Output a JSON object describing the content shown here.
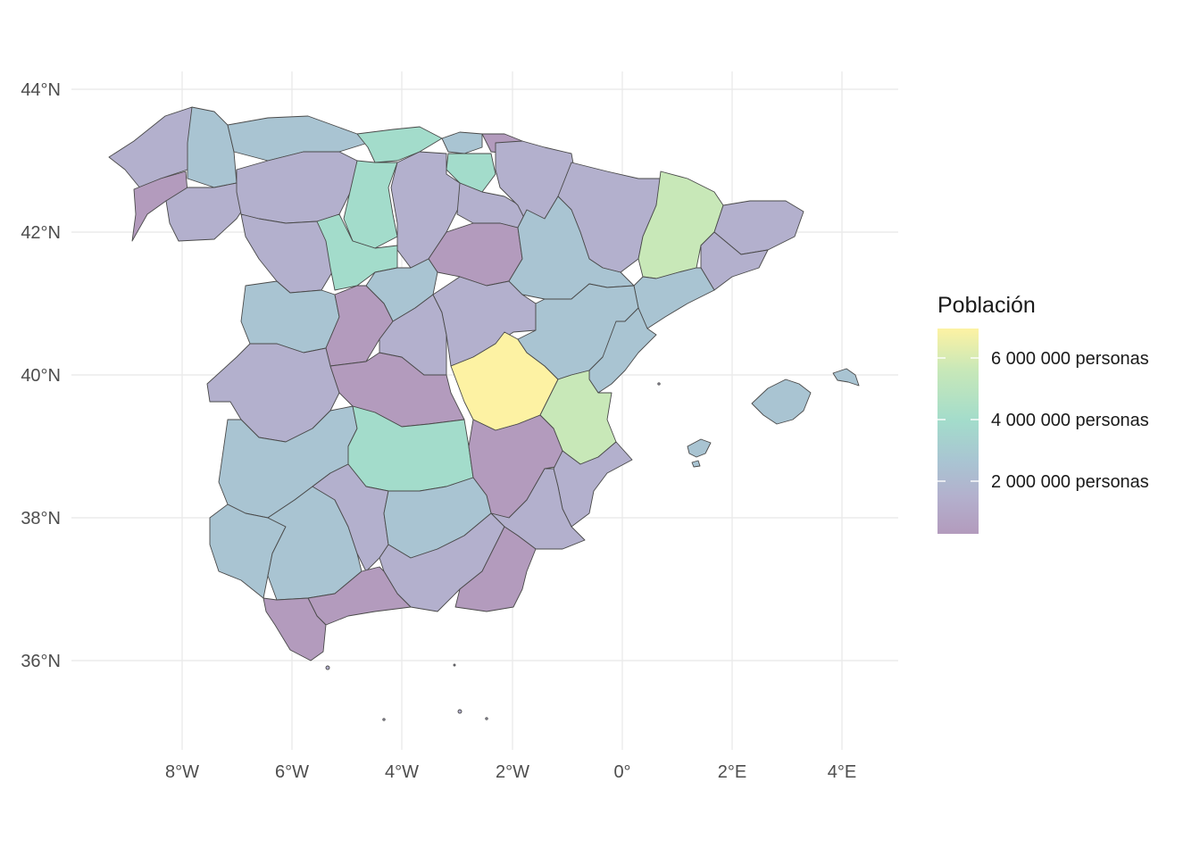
{
  "map": {
    "lat_ticks": [
      "44°N",
      "42°N",
      "40°N",
      "38°N",
      "36°N"
    ],
    "lon_ticks": [
      "8°W",
      "6°W",
      "4°W",
      "2°W",
      "0°",
      "2°E",
      "4°E"
    ]
  },
  "legend": {
    "title": "Población",
    "labels": [
      "6 000 000 personas",
      "4 000 000 personas",
      "2 000 000 personas"
    ],
    "values": [
      6000000,
      4000000,
      2000000
    ],
    "gradient_colors": [
      "#fdf2a3",
      "#c8e8b8",
      "#a3dccb",
      "#a9c4d2",
      "#b3b0cd",
      "#b39bbd"
    ]
  },
  "palette": {
    "low": "#b39bbd",
    "mid_low": "#b3b0cd",
    "mid": "#a9c4d2",
    "mid_high": "#a3dccb",
    "high_green": "#c8e8b8",
    "max": "#fdf2a3"
  }
}
